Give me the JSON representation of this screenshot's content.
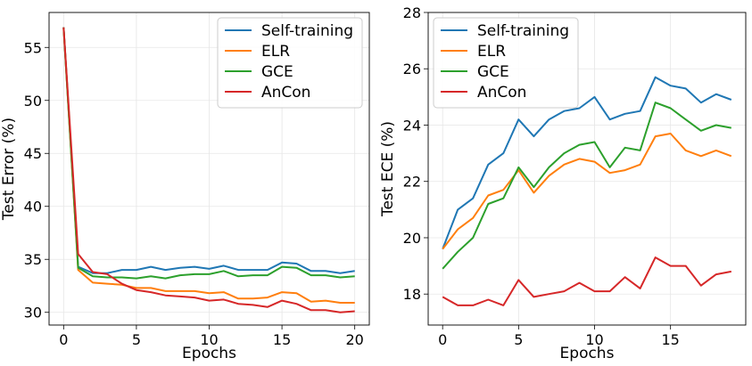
{
  "chart_data": [
    {
      "type": "line",
      "xlabel": "Epochs",
      "ylabel": "Test Error (%)",
      "xlim": [
        -1,
        21
      ],
      "ylim": [
        28.8,
        58.3
      ],
      "xticks": [
        0,
        5,
        10,
        15,
        20
      ],
      "yticks": [
        30,
        35,
        40,
        45,
        50,
        55
      ],
      "grid": true,
      "legend": "upper right",
      "x": [
        0,
        1,
        2,
        3,
        4,
        5,
        6,
        7,
        8,
        9,
        10,
        11,
        12,
        13,
        14,
        15,
        16,
        17,
        18,
        19,
        20
      ],
      "series": [
        {
          "name": "Self-training",
          "color": "#1f77b4",
          "values": [
            56.9,
            34.3,
            33.7,
            33.7,
            34.0,
            34.0,
            34.3,
            34.0,
            34.2,
            34.3,
            34.1,
            34.4,
            34.0,
            34.0,
            34.0,
            34.7,
            34.6,
            33.9,
            33.9,
            33.7,
            33.9
          ]
        },
        {
          "name": "ELR",
          "color": "#ff7f0e",
          "values": [
            56.8,
            34.0,
            32.8,
            32.7,
            32.6,
            32.3,
            32.3,
            32.0,
            32.0,
            32.0,
            31.8,
            31.9,
            31.3,
            31.3,
            31.4,
            31.9,
            31.8,
            31.0,
            31.1,
            30.9,
            30.9
          ]
        },
        {
          "name": "GCE",
          "color": "#2ca02c",
          "values": [
            56.9,
            34.2,
            33.4,
            33.3,
            33.3,
            33.2,
            33.4,
            33.2,
            33.5,
            33.6,
            33.6,
            33.9,
            33.4,
            33.5,
            33.5,
            34.3,
            34.2,
            33.5,
            33.5,
            33.3,
            33.4
          ]
        },
        {
          "name": "AnCon",
          "color": "#d62728",
          "values": [
            56.9,
            35.5,
            33.8,
            33.6,
            32.7,
            32.1,
            31.9,
            31.6,
            31.5,
            31.4,
            31.1,
            31.2,
            30.8,
            30.7,
            30.5,
            31.1,
            30.8,
            30.2,
            30.2,
            30.0,
            30.1
          ]
        }
      ]
    },
    {
      "type": "line",
      "xlabel": "Epochs",
      "ylabel": "Test ECE (%)",
      "xlim": [
        -0.95,
        19.95
      ],
      "ylim": [
        16.9,
        28.0
      ],
      "xticks": [
        0,
        5,
        10,
        15
      ],
      "yticks": [
        18,
        20,
        22,
        24,
        26,
        28
      ],
      "grid": true,
      "legend": "upper left",
      "x": [
        0,
        1,
        2,
        3,
        4,
        5,
        6,
        7,
        8,
        9,
        10,
        11,
        12,
        13,
        14,
        15,
        16,
        17,
        18,
        19
      ],
      "series": [
        {
          "name": "Self-training",
          "color": "#1f77b4",
          "values": [
            19.6,
            21.0,
            21.4,
            22.6,
            23.0,
            24.2,
            23.6,
            24.2,
            24.5,
            24.6,
            25.0,
            24.2,
            24.4,
            24.5,
            25.7,
            25.4,
            25.3,
            24.8,
            25.1,
            24.9
          ]
        },
        {
          "name": "ELR",
          "color": "#ff7f0e",
          "values": [
            19.6,
            20.3,
            20.7,
            21.5,
            21.7,
            22.4,
            21.6,
            22.2,
            22.6,
            22.8,
            22.7,
            22.3,
            22.4,
            22.6,
            23.6,
            23.7,
            23.1,
            22.9,
            23.1,
            22.9
          ]
        },
        {
          "name": "GCE",
          "color": "#2ca02c",
          "values": [
            18.9,
            19.5,
            20.0,
            21.2,
            21.4,
            22.5,
            21.8,
            22.5,
            23.0,
            23.3,
            23.4,
            22.5,
            23.2,
            23.1,
            24.8,
            24.6,
            24.2,
            23.8,
            24.0,
            23.9
          ]
        },
        {
          "name": "AnCon",
          "color": "#d62728",
          "values": [
            17.9,
            17.6,
            17.6,
            17.8,
            17.6,
            18.5,
            17.9,
            18.0,
            18.1,
            18.4,
            18.1,
            18.1,
            18.6,
            18.2,
            19.3,
            19.0,
            19.0,
            18.3,
            18.7,
            18.8
          ]
        }
      ]
    }
  ]
}
